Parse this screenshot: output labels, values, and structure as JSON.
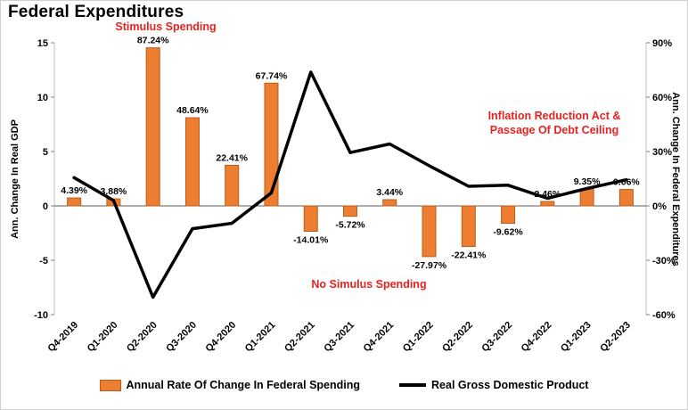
{
  "title": "Federal Expenditures",
  "annotations": {
    "stimulus": "Stimulus Spending",
    "ira_line1": "Inflation Reduction Act &",
    "ira_line2": "Passage Of Debt Ceiling",
    "no_stimulus": "No Simulus Spending"
  },
  "colors": {
    "bar": "#ED7D31",
    "bar_border": "#B85D1C",
    "line": "#000000",
    "annotation": "#e8231f",
    "axis_line": "#bfbfbf",
    "zero_line": "#595959",
    "tick_mark": "#808080"
  },
  "left_axis": {
    "title": "Ann. Change In Real GDP",
    "min": -10,
    "max": 15,
    "ticks": [
      "15",
      "10",
      "5",
      "0",
      "-5",
      "-10"
    ]
  },
  "right_axis": {
    "title": "Ann. Change In Federal Expenditures",
    "min": -60,
    "max": 90,
    "ticks": [
      "90%",
      "60%",
      "30%",
      "0%",
      "-30%",
      "-60%"
    ]
  },
  "legend": [
    {
      "label": "Annual Rate Of Change In Federal Spending",
      "type": "bar"
    },
    {
      "label": "Real Gross Domestic Product",
      "type": "line"
    }
  ],
  "chart_data": {
    "type": "bar+line",
    "categories": [
      "Q4-2019",
      "Q1-2020",
      "Q2-2020",
      "Q3-2020",
      "Q4-2020",
      "Q1-2021",
      "Q2-2021",
      "Q3-2021",
      "Q4-2021",
      "Q1-2022",
      "Q2-2022",
      "Q3-2022",
      "Q4-2022",
      "Q1-2023",
      "Q2-2023"
    ],
    "series": [
      {
        "name": "Annual Rate Of Change In Federal Spending",
        "type": "bar",
        "axis": "right",
        "values": [
          4.39,
          3.88,
          87.24,
          48.64,
          22.41,
          67.74,
          -14.01,
          -5.72,
          3.44,
          -27.97,
          -22.41,
          -9.62,
          2.46,
          9.35,
          9.06
        ],
        "labels": [
          "4.39%",
          "3.88%",
          "87.24%",
          "48.64%",
          "22.41%",
          "67.74%",
          "-14.01%",
          "-5.72%",
          "3.44%",
          "-27.97%",
          "-22.41%",
          "-9.62%",
          "2.46%",
          "9.35%",
          "9.06%"
        ]
      },
      {
        "name": "Real Gross Domestic Product",
        "type": "line",
        "axis": "left",
        "values": [
          2.6,
          0.5,
          -8.4,
          -2.1,
          -1.6,
          1.2,
          12.3,
          4.9,
          5.7,
          3.7,
          1.8,
          1.9,
          0.7,
          1.6,
          2.4
        ]
      }
    ],
    "left_axis_range": [
      -10,
      15
    ],
    "right_axis_range": [
      -60,
      90
    ],
    "grid": false,
    "legend_position": "bottom"
  }
}
